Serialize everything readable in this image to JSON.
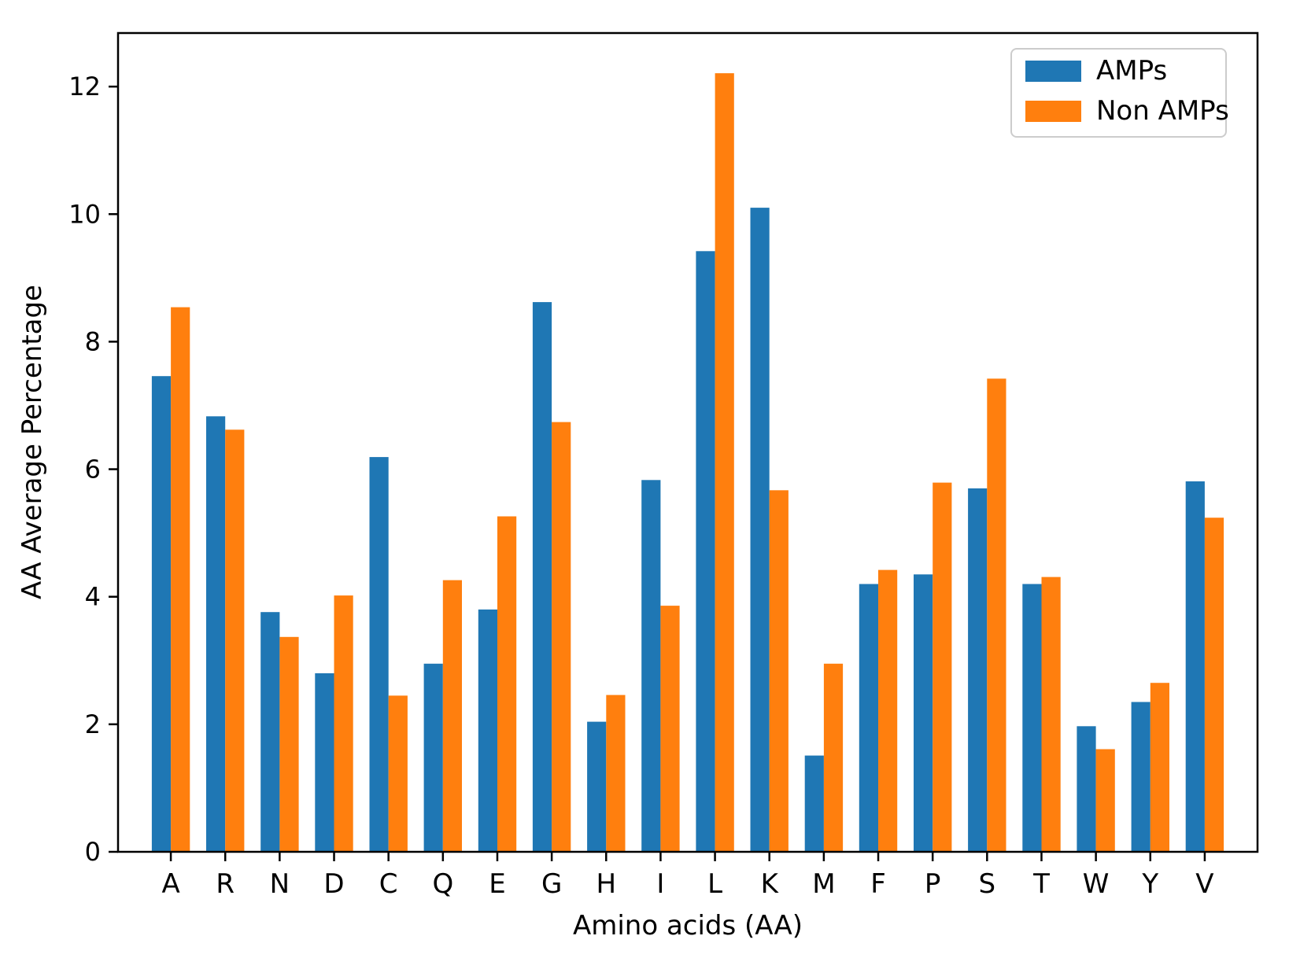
{
  "figure": {
    "background": "#ffffff",
    "frame_color": "#000000"
  },
  "chart_data": {
    "type": "bar",
    "title": "",
    "xlabel": "Amino acids (AA)",
    "ylabel": "AA Average Percentage",
    "categories": [
      "A",
      "R",
      "N",
      "D",
      "C",
      "Q",
      "E",
      "G",
      "H",
      "I",
      "L",
      "K",
      "M",
      "F",
      "P",
      "S",
      "T",
      "W",
      "Y",
      "V"
    ],
    "series": [
      {
        "name": "AMPs",
        "color": "#1f77b4",
        "values": [
          7.46,
          6.83,
          3.76,
          2.8,
          6.19,
          2.95,
          3.8,
          8.62,
          2.04,
          5.83,
          9.42,
          10.1,
          1.51,
          4.2,
          4.35,
          5.7,
          4.2,
          1.97,
          2.35,
          5.81
        ]
      },
      {
        "name": "Non AMPs",
        "color": "#ff7f0e",
        "values": [
          8.54,
          6.62,
          3.37,
          4.02,
          2.45,
          4.26,
          5.26,
          6.74,
          2.46,
          3.86,
          12.21,
          5.67,
          2.95,
          4.42,
          5.79,
          7.42,
          4.31,
          1.61,
          2.65,
          5.24
        ]
      }
    ],
    "yticks": [
      0,
      2,
      4,
      6,
      8,
      10,
      12
    ],
    "ytick_labels": [
      "0",
      "2",
      "4",
      "6",
      "8",
      "10",
      "12"
    ],
    "ylim": [
      0,
      12.84
    ],
    "grid": false,
    "legend_position": "upper right",
    "bar_width_units": 0.35
  }
}
